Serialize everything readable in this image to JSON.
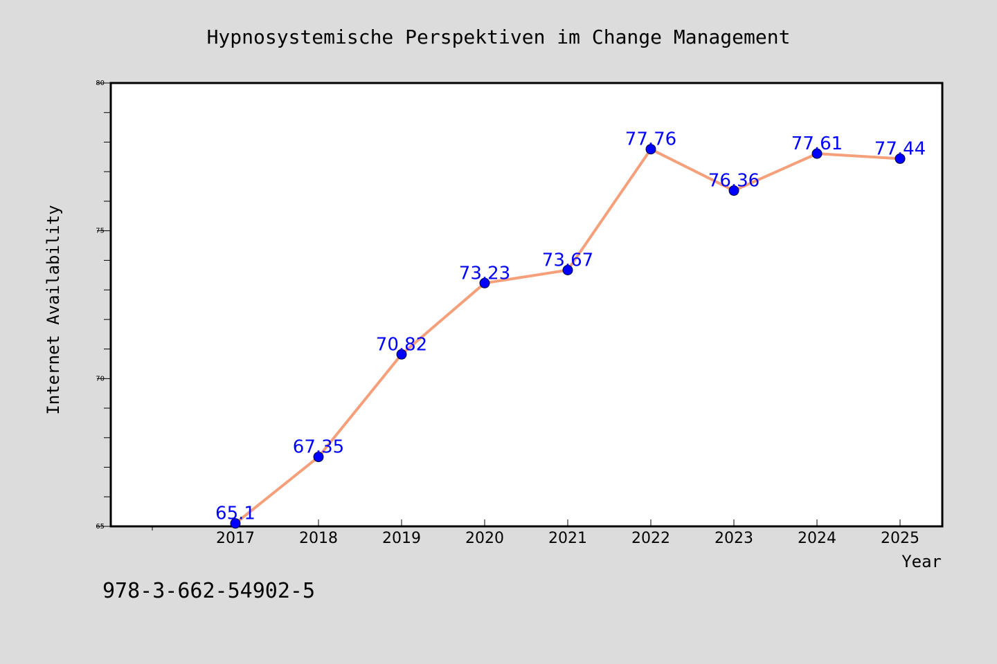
{
  "chart_data": {
    "type": "line",
    "title": "Hypnosystemische Perspektiven im Change Management",
    "xlabel": "Year",
    "ylabel": "Internet Availability",
    "categories": [
      "2017",
      "2018",
      "2019",
      "2020",
      "2021",
      "2022",
      "2023",
      "2024",
      "2025"
    ],
    "series": [
      {
        "values": [
          65.1,
          67.35,
          70.82,
          73.23,
          73.67,
          77.76,
          76.36,
          77.61,
          77.44
        ],
        "labels": [
          "65.1",
          "67.35",
          "70.82",
          "73.23",
          "73.67",
          "77.76",
          "76.36",
          "77.61",
          "77.44"
        ]
      }
    ],
    "ylim": [
      65,
      80
    ],
    "yticks": [
      "65",
      "70",
      "75",
      "80"
    ],
    "grid": false,
    "legend": false,
    "colors": {
      "line": "#f5a07a",
      "marker": "#0000ff",
      "label": "#0000ff",
      "background": "#dcdcdc",
      "plot_bg": "#ffffff"
    }
  },
  "footer": {
    "isbn": "978-3-662-54902-5"
  }
}
